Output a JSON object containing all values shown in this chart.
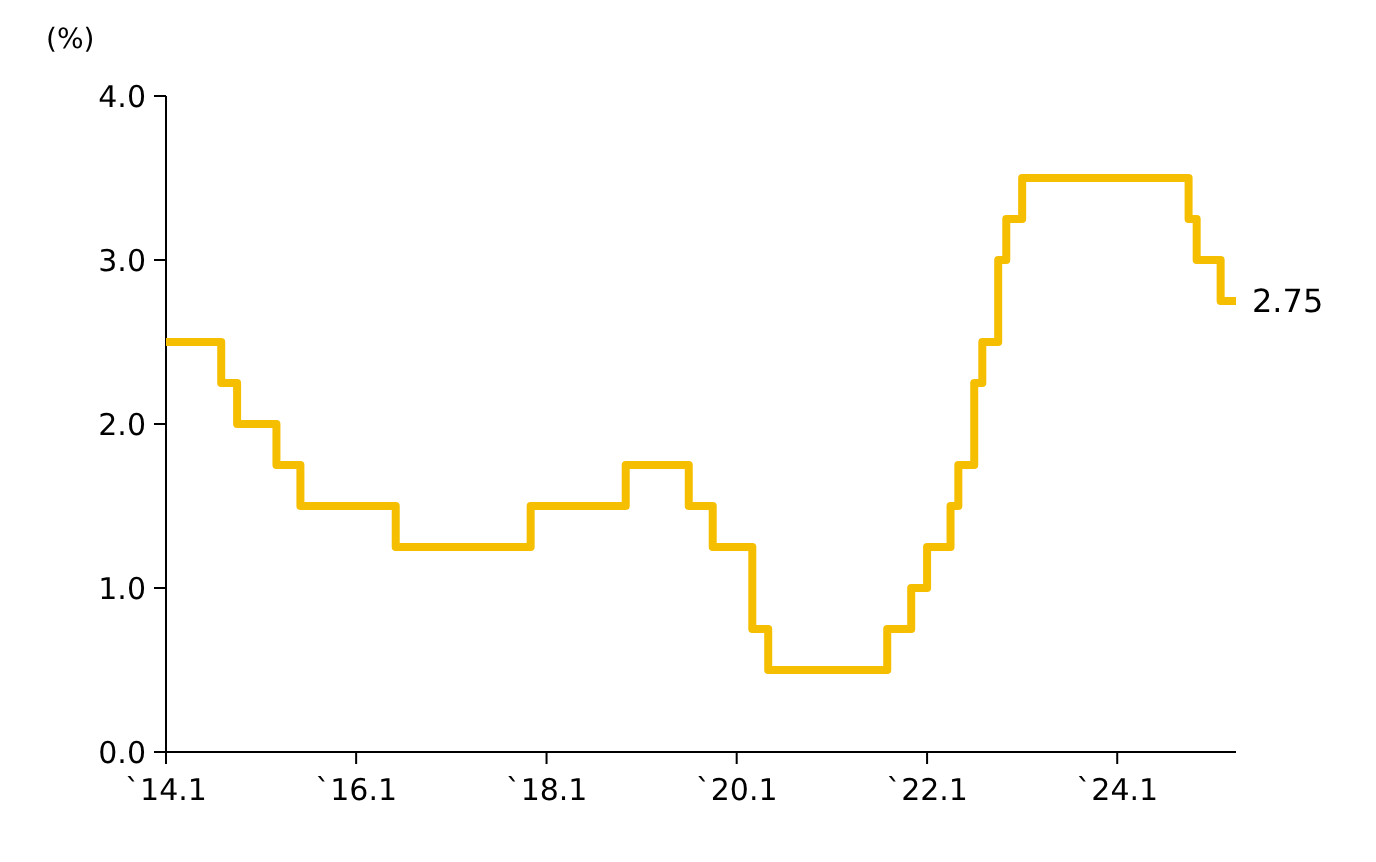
{
  "chart_data": {
    "type": "step",
    "ylabel": "(%)",
    "x": [
      "2014-01",
      "2014-08",
      "2014-10",
      "2015-03",
      "2015-06",
      "2016-06",
      "2017-11",
      "2018-11",
      "2019-07",
      "2019-10",
      "2020-03",
      "2020-05",
      "2021-08",
      "2021-11",
      "2022-01",
      "2022-04",
      "2022-05",
      "2022-07",
      "2022-08",
      "2022-10",
      "2022-11",
      "2023-01",
      "2024-10",
      "2024-11",
      "2025-02",
      "2025-04"
    ],
    "series": [
      {
        "color": "#f5bf00",
        "values": [
          2.5,
          2.25,
          2.0,
          1.75,
          1.5,
          1.25,
          1.5,
          1.75,
          1.5,
          1.25,
          0.75,
          0.5,
          0.75,
          1.0,
          1.25,
          1.5,
          1.75,
          2.25,
          2.5,
          3.0,
          3.25,
          3.5,
          3.25,
          3.0,
          2.75,
          2.75
        ]
      }
    ],
    "xlim": [
      "2014-01",
      "2025-04"
    ],
    "xticks": [
      {
        "value": "2014-01",
        "label": "`14.1"
      },
      {
        "value": "2016-01",
        "label": "`16.1"
      },
      {
        "value": "2018-01",
        "label": "`18.1"
      },
      {
        "value": "2020-01",
        "label": "`20.1"
      },
      {
        "value": "2022-01",
        "label": "`22.1"
      },
      {
        "value": "2024-01",
        "label": "`24.1"
      }
    ],
    "ylim": [
      0,
      4
    ],
    "yticks": [
      {
        "value": 0,
        "label": "0.0"
      },
      {
        "value": 1,
        "label": "1.0"
      },
      {
        "value": 2,
        "label": "2.0"
      },
      {
        "value": 3,
        "label": "3.0"
      },
      {
        "value": 4,
        "label": "4.0"
      }
    ],
    "annotations": [
      {
        "text": "2.75",
        "x": "2025-04",
        "y": 2.75
      }
    ],
    "grid": false,
    "line_style": "solid",
    "marker": "none"
  }
}
